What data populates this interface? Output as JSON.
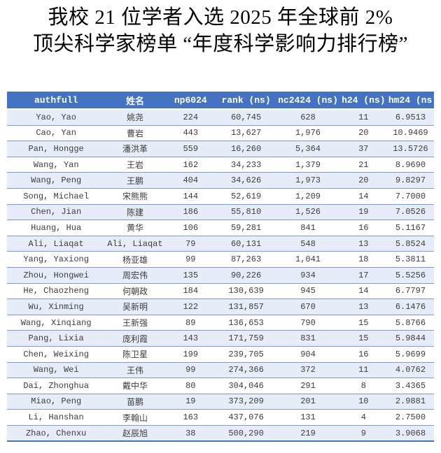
{
  "title": {
    "line1": "我校 21 位学者入选 2025 年全球前 2%",
    "line2": "顶尖科学家榜单 “年度科学影响力排行榜”"
  },
  "table": {
    "columns": [
      "authfull",
      "姓名",
      "np6024",
      "rank (ns)",
      "nc2424 (ns)",
      "h24 (ns)",
      "hm24 (ns)"
    ],
    "rows": [
      [
        "Yao, Yao",
        "姚尧",
        "224",
        "60,745",
        "628",
        "11",
        "6.9513"
      ],
      [
        "Cao, Yan",
        "曹岩",
        "443",
        "13,627",
        "1,976",
        "20",
        "10.9469"
      ],
      [
        "Pan, Hongge",
        "潘洪革",
        "559",
        "16,260",
        "5,364",
        "37",
        "13.5726"
      ],
      [
        "Wang, Yan",
        "王岩",
        "162",
        "34,233",
        "1,379",
        "21",
        "8.9690"
      ],
      [
        "Wang, Peng",
        "王鹏",
        "404",
        "34,626",
        "1,973",
        "20",
        "9.8297"
      ],
      [
        "Song, Michael",
        "宋熊熊",
        "144",
        "52,619",
        "1,209",
        "14",
        "7.7000"
      ],
      [
        "Chen, Jian",
        "陈建",
        "186",
        "55,810",
        "1,526",
        "19",
        "7.0526"
      ],
      [
        "Huang, Hua",
        "黄华",
        "106",
        "59,281",
        "841",
        "16",
        "5.1167"
      ],
      [
        "Ali, Liaqat",
        "Ali, Liaqat",
        "79",
        "60,131",
        "548",
        "13",
        "5.8524"
      ],
      [
        "Yang, Yaxiong",
        "杨亚雄",
        "99",
        "87,263",
        "1,041",
        "18",
        "5.3811"
      ],
      [
        "Zhou, Hongwei",
        "周宏伟",
        "135",
        "90,226",
        "934",
        "17",
        "5.5256"
      ],
      [
        "He, Chaozheng",
        "何朝政",
        "184",
        "130,639",
        "945",
        "14",
        "6.7797"
      ],
      [
        "Wu, Xinming",
        "吴新明",
        "122",
        "131,857",
        "670",
        "13",
        "6.1476"
      ],
      [
        "Wang, Xinqiang",
        "王新强",
        "89",
        "136,653",
        "790",
        "15",
        "5.8766"
      ],
      [
        "Pang, Lixia",
        "庞利霞",
        "143",
        "171,759",
        "831",
        "15",
        "5.9844"
      ],
      [
        "Chen, Weixing",
        "陈卫星",
        "199",
        "239,705",
        "904",
        "16",
        "5.9699"
      ],
      [
        "Wang, Wei",
        "王伟",
        "99",
        "274,366",
        "372",
        "11",
        "4.0762"
      ],
      [
        "Dai, Zhonghua",
        "戴中华",
        "80",
        "304,046",
        "291",
        "8",
        "3.4365"
      ],
      [
        "Miao, Peng",
        "苗鹏",
        "19",
        "373,209",
        "201",
        "10",
        "2.9881"
      ],
      [
        "Li, Hanshan",
        "李翰山",
        "163",
        "437,076",
        "131",
        "4",
        "2.7500"
      ],
      [
        "Zhao, Chenxu",
        "赵辰旭",
        "38",
        "500,290",
        "219",
        "9",
        "3.9068"
      ]
    ],
    "colors": {
      "header_bg": "#4573C4",
      "header_text": "#FFFFFF",
      "row_alt_bg": "#E7EDF8",
      "row_bg": "#FFFFFF",
      "row_border": "#7C9BD4",
      "body_text": "#3D3D3D"
    }
  }
}
